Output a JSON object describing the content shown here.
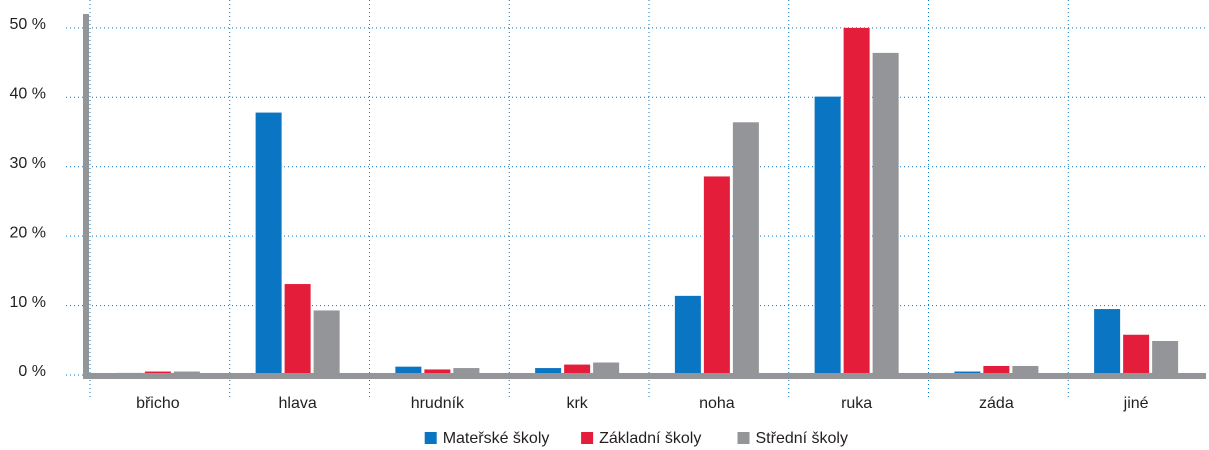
{
  "chart_data": {
    "type": "bar",
    "categories": [
      "břicho",
      "hlava",
      "hrudník",
      "krk",
      "noha",
      "ruka",
      "záda",
      "jiné"
    ],
    "series": [
      {
        "name": "Mateřské školy",
        "color": "#0a75c2",
        "values": [
          0.3,
          37.8,
          1.2,
          1.0,
          11.4,
          40.1,
          0.5,
          9.5
        ]
      },
      {
        "name": "Základní školy",
        "color": "#e41e3a",
        "values": [
          0.5,
          13.1,
          0.8,
          1.5,
          28.6,
          50,
          1.3,
          5.8
        ]
      },
      {
        "name": "Střední školy",
        "color": "#939598",
        "values": [
          0.5,
          9.3,
          1.0,
          1.8,
          36.4,
          46.4,
          1.3,
          4.9
        ]
      }
    ],
    "ylim": [
      0,
      52
    ],
    "yticks": [
      {
        "value": 0,
        "label": "0 %"
      },
      {
        "value": 10,
        "label": "10 %"
      },
      {
        "value": 20,
        "label": "20 %"
      },
      {
        "value": 30,
        "label": "30 %"
      },
      {
        "value": 40,
        "label": "40 %"
      },
      {
        "value": 50,
        "label": "50 %"
      }
    ],
    "grid": true
  }
}
